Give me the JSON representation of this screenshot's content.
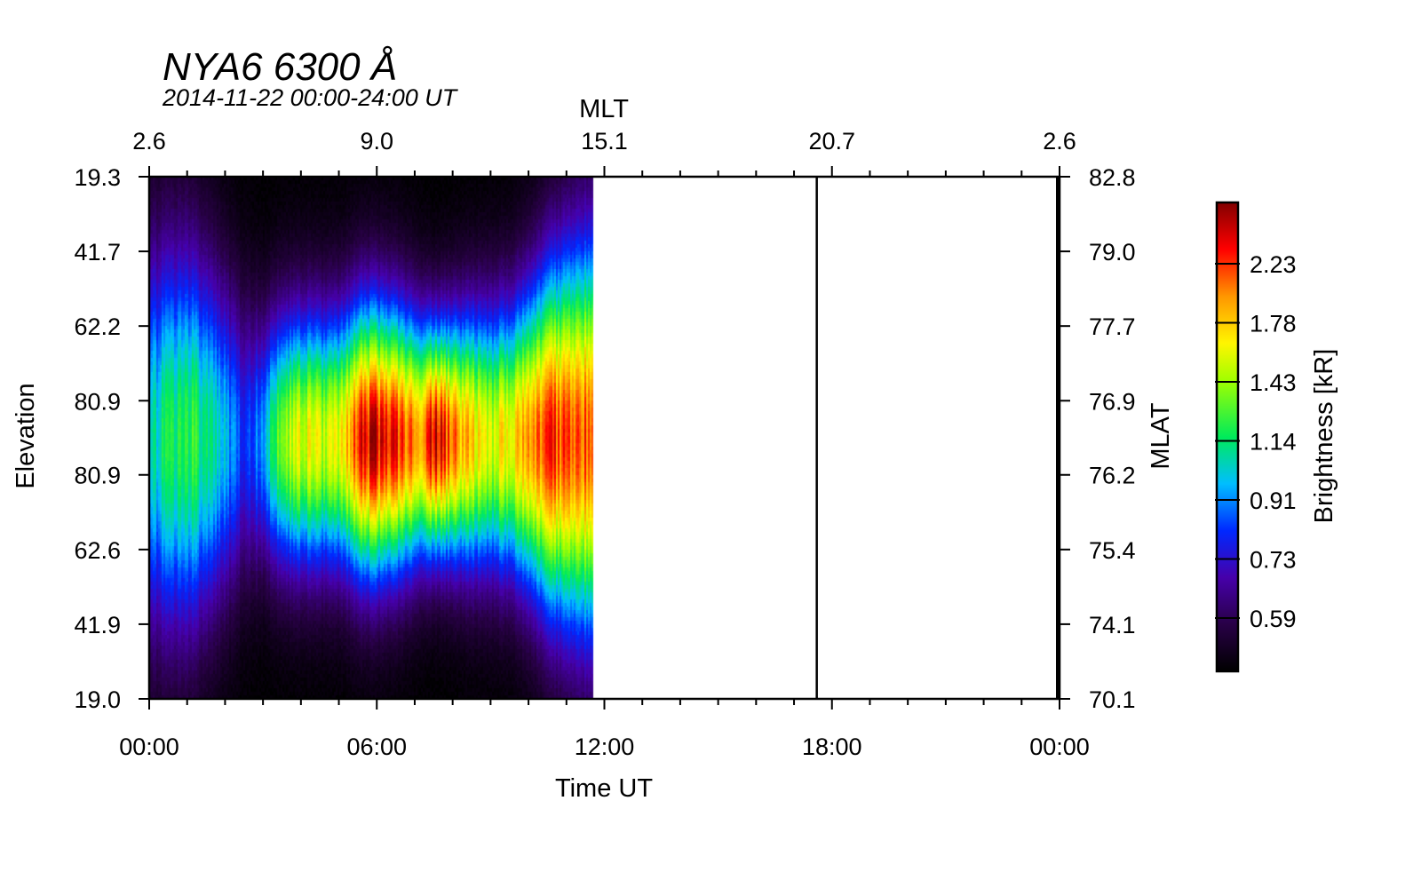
{
  "chart_data": {
    "type": "heatmap",
    "title": "NYA6 6300 Å",
    "subtitle": "2014-11-22 00:00-24:00 UT",
    "xlabel": "Time UT",
    "ylabel": "Elevation",
    "top_axis_label": "MLT",
    "right_axis_label": "MLAT",
    "colorbar_label": "Brightness [kR]",
    "x_range_hours": [
      0,
      24
    ],
    "x_ticks": [
      {
        "hour": 0,
        "label": "00:00"
      },
      {
        "hour": 6,
        "label": "06:00"
      },
      {
        "hour": 12,
        "label": "12:00"
      },
      {
        "hour": 18,
        "label": "18:00"
      },
      {
        "hour": 24,
        "label": "00:00"
      }
    ],
    "top_ticks": [
      {
        "hour": 0,
        "label": "2.6"
      },
      {
        "hour": 6,
        "label": "9.0"
      },
      {
        "hour": 12,
        "label": "15.1"
      },
      {
        "hour": 18,
        "label": "20.7"
      },
      {
        "hour": 24,
        "label": "2.6"
      }
    ],
    "left_ticks": [
      {
        "frac": 0.0,
        "label": "19.3"
      },
      {
        "frac": 0.143,
        "label": "41.7"
      },
      {
        "frac": 0.286,
        "label": "62.2"
      },
      {
        "frac": 0.429,
        "label": "80.9"
      },
      {
        "frac": 0.571,
        "label": "80.9"
      },
      {
        "frac": 0.714,
        "label": "62.6"
      },
      {
        "frac": 0.857,
        "label": "41.9"
      },
      {
        "frac": 1.0,
        "label": "19.0"
      }
    ],
    "right_ticks": [
      {
        "frac": 0.0,
        "label": "82.8"
      },
      {
        "frac": 0.143,
        "label": "79.0"
      },
      {
        "frac": 0.286,
        "label": "77.7"
      },
      {
        "frac": 0.429,
        "label": "76.9"
      },
      {
        "frac": 0.571,
        "label": "76.2"
      },
      {
        "frac": 0.714,
        "label": "75.4"
      },
      {
        "frac": 0.857,
        "label": "74.1"
      },
      {
        "frac": 1.0,
        "label": "70.1"
      }
    ],
    "data_coverage_hours": [
      0,
      11.7
    ],
    "vertical_marker_hour": 17.6,
    "colorbar": {
      "ticks": [
        "2.23",
        "1.78",
        "1.43",
        "1.14",
        "0.91",
        "0.73",
        "0.59"
      ],
      "range_kR": [
        0.45,
        2.6
      ]
    },
    "intensity_profile": [
      {
        "hour": 0.0,
        "peak": 1.35,
        "width": 0.55
      },
      {
        "hour": 0.5,
        "peak": 1.55,
        "width": 0.55
      },
      {
        "hour": 1.0,
        "peak": 1.6,
        "width": 0.55
      },
      {
        "hour": 1.5,
        "peak": 1.5,
        "width": 0.5
      },
      {
        "hour": 2.0,
        "peak": 1.3,
        "width": 0.45
      },
      {
        "hour": 2.5,
        "peak": 1.05,
        "width": 0.4
      },
      {
        "hour": 3.0,
        "peak": 1.3,
        "width": 0.35
      },
      {
        "hour": 3.5,
        "peak": 1.75,
        "width": 0.36
      },
      {
        "hour": 4.0,
        "peak": 1.9,
        "width": 0.36
      },
      {
        "hour": 4.5,
        "peak": 1.85,
        "width": 0.36
      },
      {
        "hour": 5.0,
        "peak": 1.95,
        "width": 0.36
      },
      {
        "hour": 5.5,
        "peak": 2.35,
        "width": 0.38
      },
      {
        "hour": 6.0,
        "peak": 2.45,
        "width": 0.38
      },
      {
        "hour": 6.5,
        "peak": 2.3,
        "width": 0.37
      },
      {
        "hour": 7.0,
        "peak": 2.15,
        "width": 0.35
      },
      {
        "hour": 7.5,
        "peak": 2.45,
        "width": 0.32
      },
      {
        "hour": 8.0,
        "peak": 2.2,
        "width": 0.34
      },
      {
        "hour": 8.5,
        "peak": 2.0,
        "width": 0.36
      },
      {
        "hour": 9.0,
        "peak": 1.9,
        "width": 0.37
      },
      {
        "hour": 9.5,
        "peak": 2.0,
        "width": 0.38
      },
      {
        "hour": 10.0,
        "peak": 2.15,
        "width": 0.42
      },
      {
        "hour": 10.5,
        "peak": 2.3,
        "width": 0.48
      },
      {
        "hour": 11.0,
        "peak": 2.3,
        "width": 0.52
      },
      {
        "hour": 11.5,
        "peak": 2.25,
        "width": 0.55
      },
      {
        "hour": 11.7,
        "peak": 2.2,
        "width": 0.55
      }
    ]
  }
}
